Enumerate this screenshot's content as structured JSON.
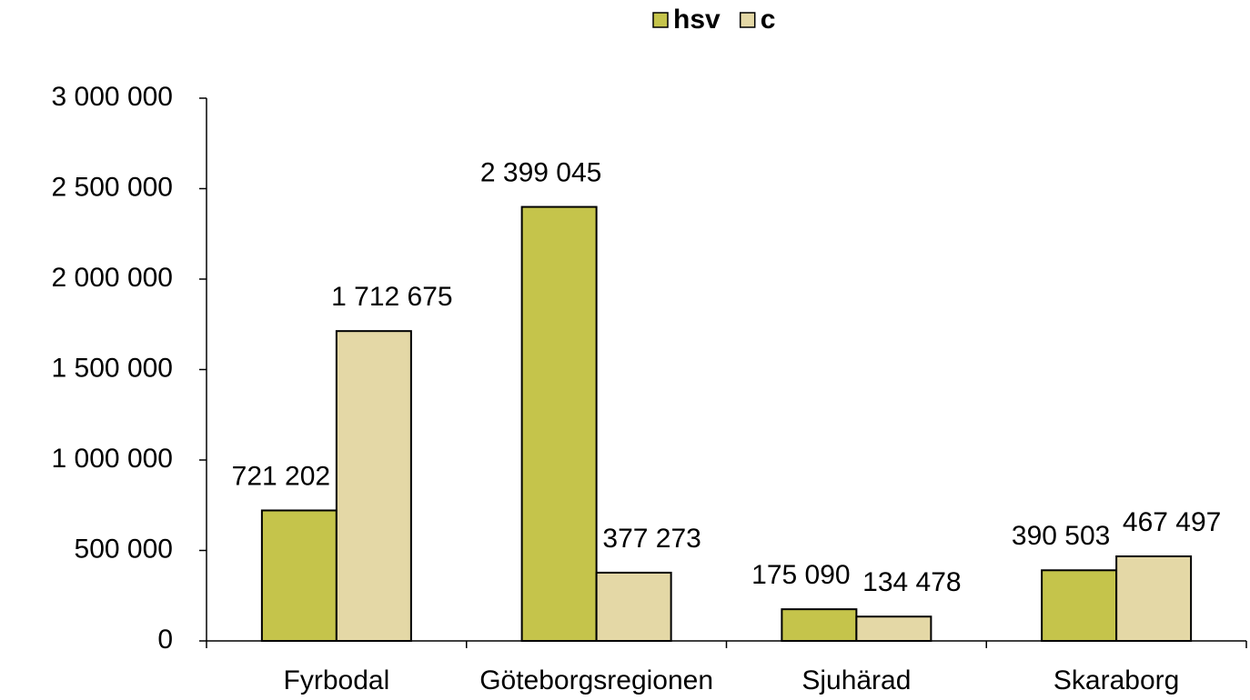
{
  "chart_data": {
    "type": "bar",
    "categories": [
      "Fyrbodal",
      "Göteborgsregionen",
      "Sjuhärad",
      "Skaraborg"
    ],
    "series": [
      {
        "name": "hsv",
        "color": "#c5c44b",
        "values": [
          721202,
          2399045,
          175090,
          390503
        ],
        "value_labels": [
          "721 202",
          "2 399 045",
          "175 090",
          "390 503"
        ]
      },
      {
        "name": "c",
        "color": "#e4d8a6",
        "values": [
          1712675,
          377273,
          134478,
          467497
        ],
        "value_labels": [
          "1 712 675",
          "377 273",
          "134 478",
          "467 497"
        ]
      }
    ],
    "ylim": [
      0,
      3000000
    ],
    "yticks": [
      0,
      {
        "value": 500000,
        "label": "500 000"
      },
      {
        "value": 1000000,
        "label": "1 000 000"
      },
      {
        "value": 1500000,
        "label": "1 500 000"
      },
      {
        "value": 2000000,
        "label": "2 000 000"
      },
      {
        "value": 2500000,
        "label": "2 500 000"
      },
      {
        "value": 3000000,
        "label": "3 000 000"
      }
    ],
    "legend": "top"
  }
}
